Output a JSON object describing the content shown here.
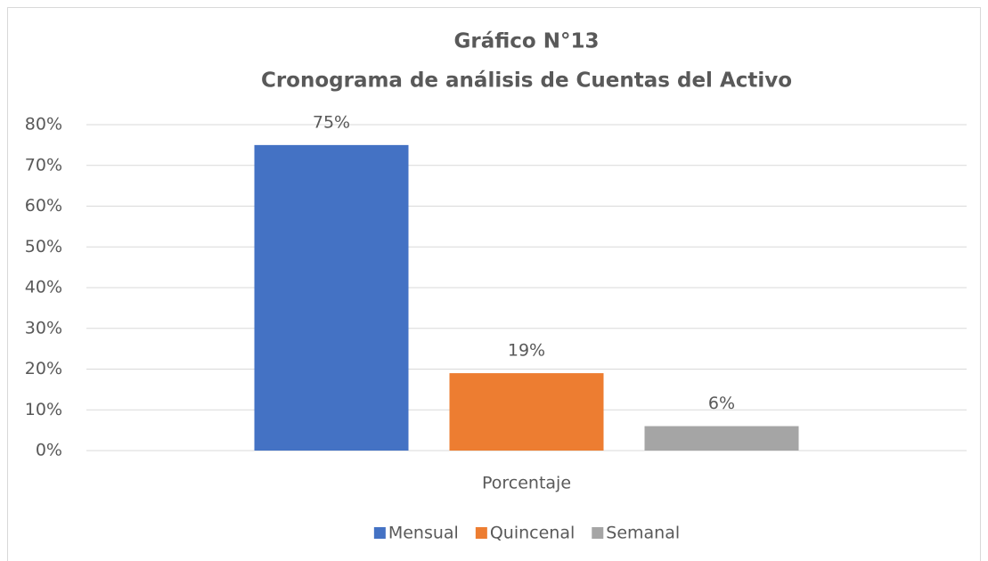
{
  "chart_data": {
    "type": "bar",
    "title": "Gráfico N°13",
    "subtitle": "Cronograma de análisis de Cuentas del Activo",
    "categories": [
      "Porcentaje"
    ],
    "series": [
      {
        "name": "Mensual",
        "color": "#4472c4",
        "values": [
          75
        ],
        "value_labels": [
          "75%"
        ]
      },
      {
        "name": "Quincenal",
        "color": "#ed7d31",
        "values": [
          19
        ],
        "value_labels": [
          "19%"
        ]
      },
      {
        "name": "Semanal",
        "color": "#a5a5a5",
        "values": [
          6
        ],
        "value_labels": [
          "6%"
        ]
      }
    ],
    "ylim": [
      0,
      80
    ],
    "yticks": [
      {
        "value": 0,
        "label": "0%"
      },
      {
        "value": 10,
        "label": "10%"
      },
      {
        "value": 20,
        "label": "20%"
      },
      {
        "value": 30,
        "label": "30%"
      },
      {
        "value": 40,
        "label": "40%"
      },
      {
        "value": 50,
        "label": "50%"
      },
      {
        "value": 60,
        "label": "60%"
      },
      {
        "value": 70,
        "label": "70%"
      },
      {
        "value": 80,
        "label": "80%"
      }
    ],
    "grid": true,
    "legend": "bottom"
  }
}
